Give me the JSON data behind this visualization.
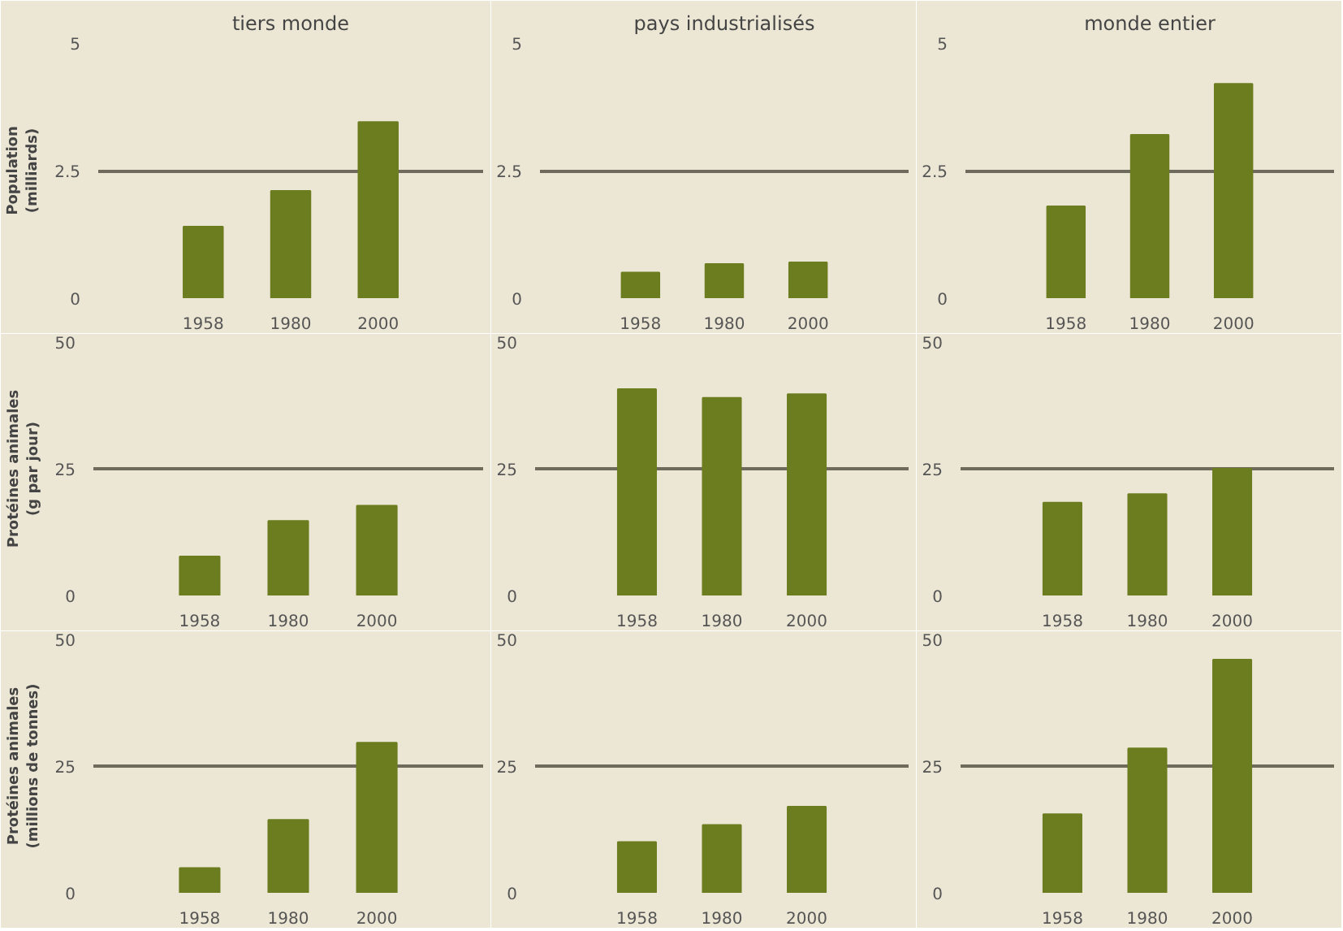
{
  "chart_data": [
    {
      "type": "bar",
      "title": "tiers monde",
      "ylabel": "Population (milliards)",
      "categories": [
        "1958",
        "1980",
        "2000"
      ],
      "values": [
        1.4,
        2.1,
        3.45
      ],
      "color": "#6b7d1f",
      "ylim": [
        0,
        5
      ],
      "yticks": [
        0,
        2.5,
        5
      ],
      "grid": "y"
    },
    {
      "type": "bar",
      "title": "pays industrialisés",
      "categories": [
        "1958",
        "1980",
        "2000"
      ],
      "values": [
        0.5,
        0.67,
        0.7
      ],
      "color": "#6b7d1f",
      "ylim": [
        0,
        5
      ],
      "yticks": [
        0,
        2.5,
        5
      ],
      "grid": "y"
    },
    {
      "type": "bar",
      "title": "monde entier",
      "categories": [
        "1958",
        "1980",
        "2000"
      ],
      "values": [
        1.8,
        3.2,
        4.2
      ],
      "color": "#6b7d1f",
      "ylim": [
        0,
        5
      ],
      "yticks": [
        0,
        2.5,
        5
      ],
      "grid": "y"
    },
    {
      "type": "bar",
      "ylabel": "Protéines animales (g par jour)",
      "categories": [
        "1958",
        "1980",
        "2000"
      ],
      "values": [
        7.7,
        14.7,
        17.7
      ],
      "color": "#6b7d1f",
      "ylim": [
        0,
        50
      ],
      "yticks": [
        0,
        25,
        50
      ],
      "grid": "y"
    },
    {
      "type": "bar",
      "categories": [
        "1958",
        "1980",
        "2000"
      ],
      "values": [
        40.7,
        39,
        39.7
      ],
      "color": "#6b7d1f",
      "ylim": [
        0,
        50
      ],
      "yticks": [
        0,
        25,
        50
      ],
      "grid": "y"
    },
    {
      "type": "bar",
      "categories": [
        "1958",
        "1980",
        "2000"
      ],
      "values": [
        18.3,
        20,
        25
      ],
      "color": "#6b7d1f",
      "ylim": [
        0,
        50
      ],
      "yticks": [
        0,
        25,
        50
      ],
      "grid": "y"
    },
    {
      "type": "bar",
      "ylabel": "Protéines animales (millions de tonnes)",
      "categories": [
        "1958",
        "1980",
        "2000"
      ],
      "values": [
        4.9,
        14.4,
        29.6
      ],
      "color": "#6b7d1f",
      "ylim": [
        0,
        50
      ],
      "yticks": [
        0,
        25,
        50
      ],
      "grid": "y"
    },
    {
      "type": "bar",
      "categories": [
        "1958",
        "1980",
        "2000"
      ],
      "values": [
        10,
        13.4,
        17
      ],
      "color": "#6b7d1f",
      "ylim": [
        0,
        50
      ],
      "yticks": [
        0,
        25,
        50
      ],
      "grid": "y"
    },
    {
      "type": "bar",
      "categories": [
        "1958",
        "1980",
        "2000"
      ],
      "values": [
        15.5,
        28.5,
        46
      ],
      "color": "#6b7d1f",
      "ylim": [
        0,
        50
      ],
      "yticks": [
        0,
        25,
        50
      ],
      "grid": "y"
    }
  ]
}
